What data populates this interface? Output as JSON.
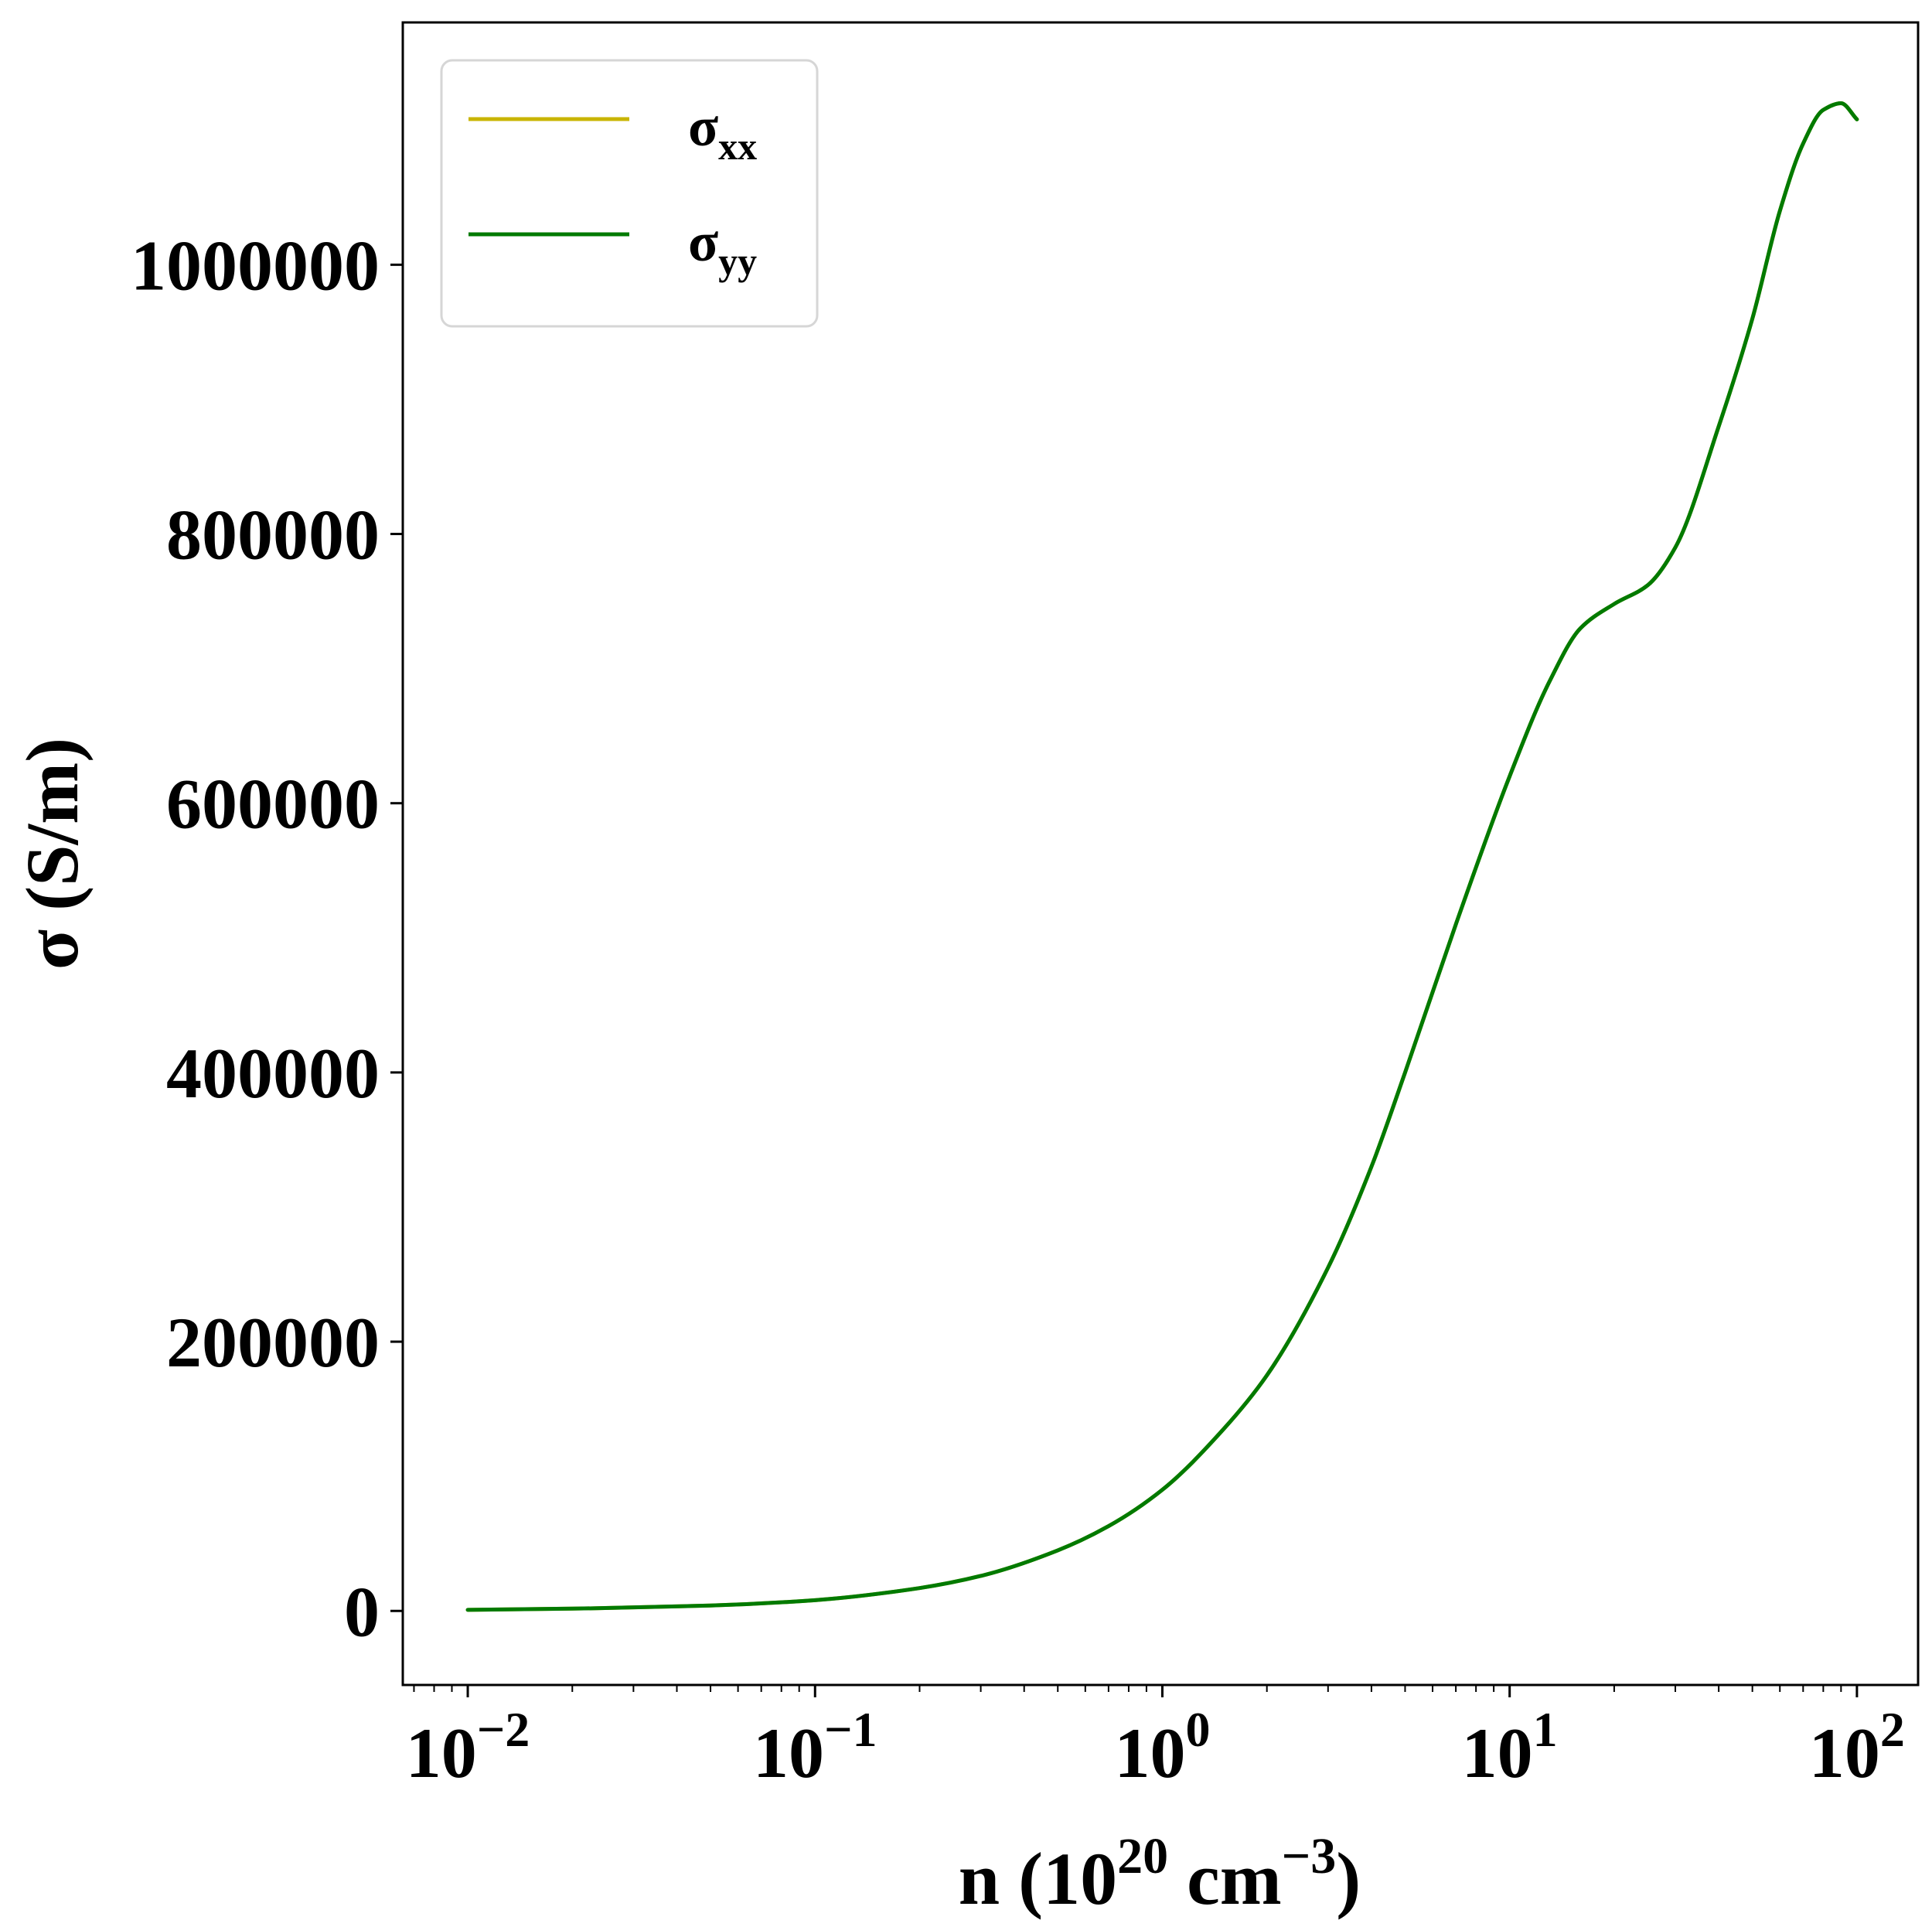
{
  "chart_data": {
    "type": "line",
    "title": "",
    "xlabel": {
      "base": "n (10",
      "sup1": "20",
      "mid": " cm",
      "sup2": "−3",
      "end": ")"
    },
    "ylabel": "σ (S/m)",
    "xscale": "log",
    "xlim": [
      0.0065,
      150
    ],
    "ylim": [
      -55000,
      1180000
    ],
    "grid": false,
    "legend_position": "top-left",
    "x_ticks": [
      {
        "value": 0.01,
        "base": "10",
        "exp": "−2"
      },
      {
        "value": 0.1,
        "base": "10",
        "exp": "−1"
      },
      {
        "value": 1,
        "base": "10",
        "exp": "0"
      },
      {
        "value": 10,
        "base": "10",
        "exp": "1"
      },
      {
        "value": 100,
        "base": "10",
        "exp": "2"
      }
    ],
    "y_ticks": [
      {
        "value": 0,
        "label": "0"
      },
      {
        "value": 200000,
        "label": "200000"
      },
      {
        "value": 400000,
        "label": "400000"
      },
      {
        "value": 600000,
        "label": "600000"
      },
      {
        "value": 800000,
        "label": "800000"
      },
      {
        "value": 1000000,
        "label": "1000000"
      }
    ],
    "x": [
      0.01,
      0.02,
      0.05,
      0.1,
      0.2,
      0.3,
      0.5,
      0.7,
      1,
      1.5,
      2,
      3,
      4,
      5,
      7,
      10,
      13,
      16,
      20,
      25,
      30,
      40,
      50,
      60,
      70,
      80,
      90,
      100
    ],
    "series": [
      {
        "name": "σ",
        "subscript": "xx",
        "color": "#c8b400",
        "values": [
          800,
          1700,
          4000,
          8000,
          17000,
          26000,
          45000,
          63000,
          90000,
          135000,
          175000,
          255000,
          330000,
          400000,
          510000,
          620000,
          690000,
          730000,
          748000,
          762000,
          790000,
          880000,
          960000,
          1040000,
          1090000,
          1115000,
          1120000,
          1108000
        ]
      },
      {
        "name": "σ",
        "subscript": "yy",
        "color": "#007a00",
        "values": [
          800,
          1700,
          4000,
          8000,
          17000,
          26000,
          45000,
          63000,
          90000,
          135000,
          175000,
          255000,
          330000,
          400000,
          510000,
          620000,
          690000,
          730000,
          748000,
          762000,
          790000,
          880000,
          960000,
          1040000,
          1090000,
          1115000,
          1120000,
          1108000
        ]
      }
    ]
  }
}
